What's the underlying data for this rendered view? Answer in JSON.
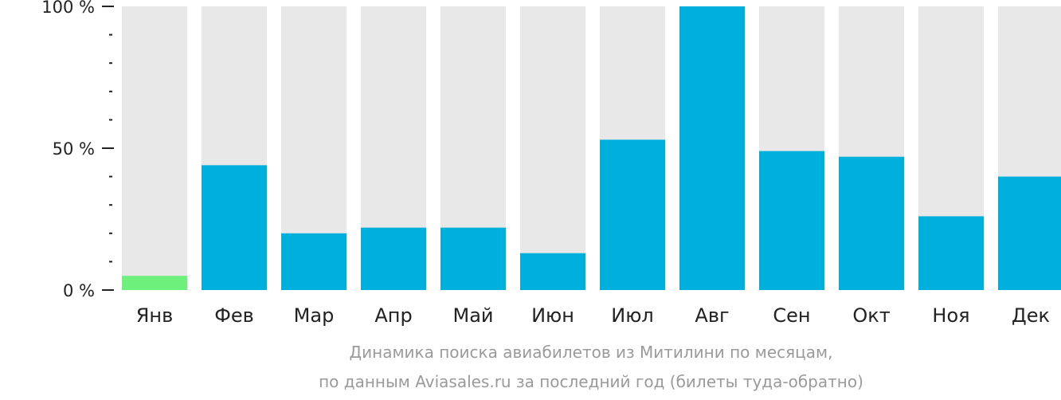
{
  "chart_data": {
    "type": "bar",
    "categories": [
      "Янв",
      "Фев",
      "Мар",
      "Апр",
      "Май",
      "Июн",
      "Июл",
      "Авг",
      "Сен",
      "Окт",
      "Ноя",
      "Дек"
    ],
    "values": [
      5,
      44,
      20,
      22,
      22,
      13,
      53,
      100,
      49,
      47,
      26,
      40
    ],
    "highlight_index": 0,
    "ylim": [
      0,
      100
    ],
    "yticks": [
      {
        "value": 0,
        "label": "0 %"
      },
      {
        "value": 50,
        "label": "50 %"
      },
      {
        "value": 100,
        "label": "100 %"
      }
    ],
    "minor_tick_step": 10,
    "caption": [
      "Динамика поиска авиабилетов из Митилини по месяцам,",
      "по данным Aviasales.ru за последний год (билеты туда-обратно)"
    ],
    "colors": {
      "bar": "#00b0dc",
      "highlight": "#6ef07c",
      "background_bar": "#e8e8e8",
      "axis": "#222222",
      "caption": "#9a9a9a"
    }
  }
}
